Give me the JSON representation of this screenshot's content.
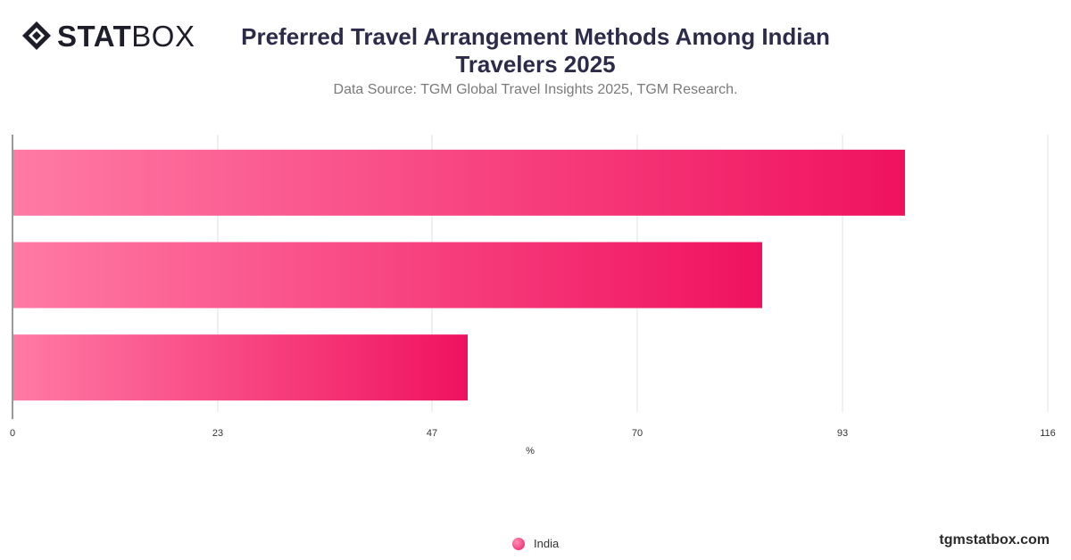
{
  "brand": {
    "logo_bold": "STAT",
    "logo_light": "BOX",
    "logo_icon": "statbox-diamond-icon",
    "watermark": "tgmstatbox.com"
  },
  "header": {
    "title": "Preferred Travel Arrangement Methods Among Indian Travelers 2025",
    "subtitle": "Data Source: TGM Global Travel Insights 2025, TGM Research."
  },
  "colors": {
    "bar_start": "#ff7aa5",
    "bar_end": "#f0125f",
    "grid": "#e0e0e0",
    "axis": "#333333"
  },
  "chart_data": {
    "type": "bar",
    "orientation": "horizontal",
    "title": "Preferred Travel Arrangement Methods Among Indian Travelers 2025",
    "xlabel": "%",
    "ylabel": "",
    "xlim": [
      0,
      116
    ],
    "x_ticks": [
      0,
      23,
      47,
      70,
      93,
      116
    ],
    "categories": [
      "",
      "",
      ""
    ],
    "series": [
      {
        "name": "India",
        "values": [
          100,
          84,
          51
        ]
      }
    ],
    "grid": true,
    "legend": "bottom-center"
  }
}
